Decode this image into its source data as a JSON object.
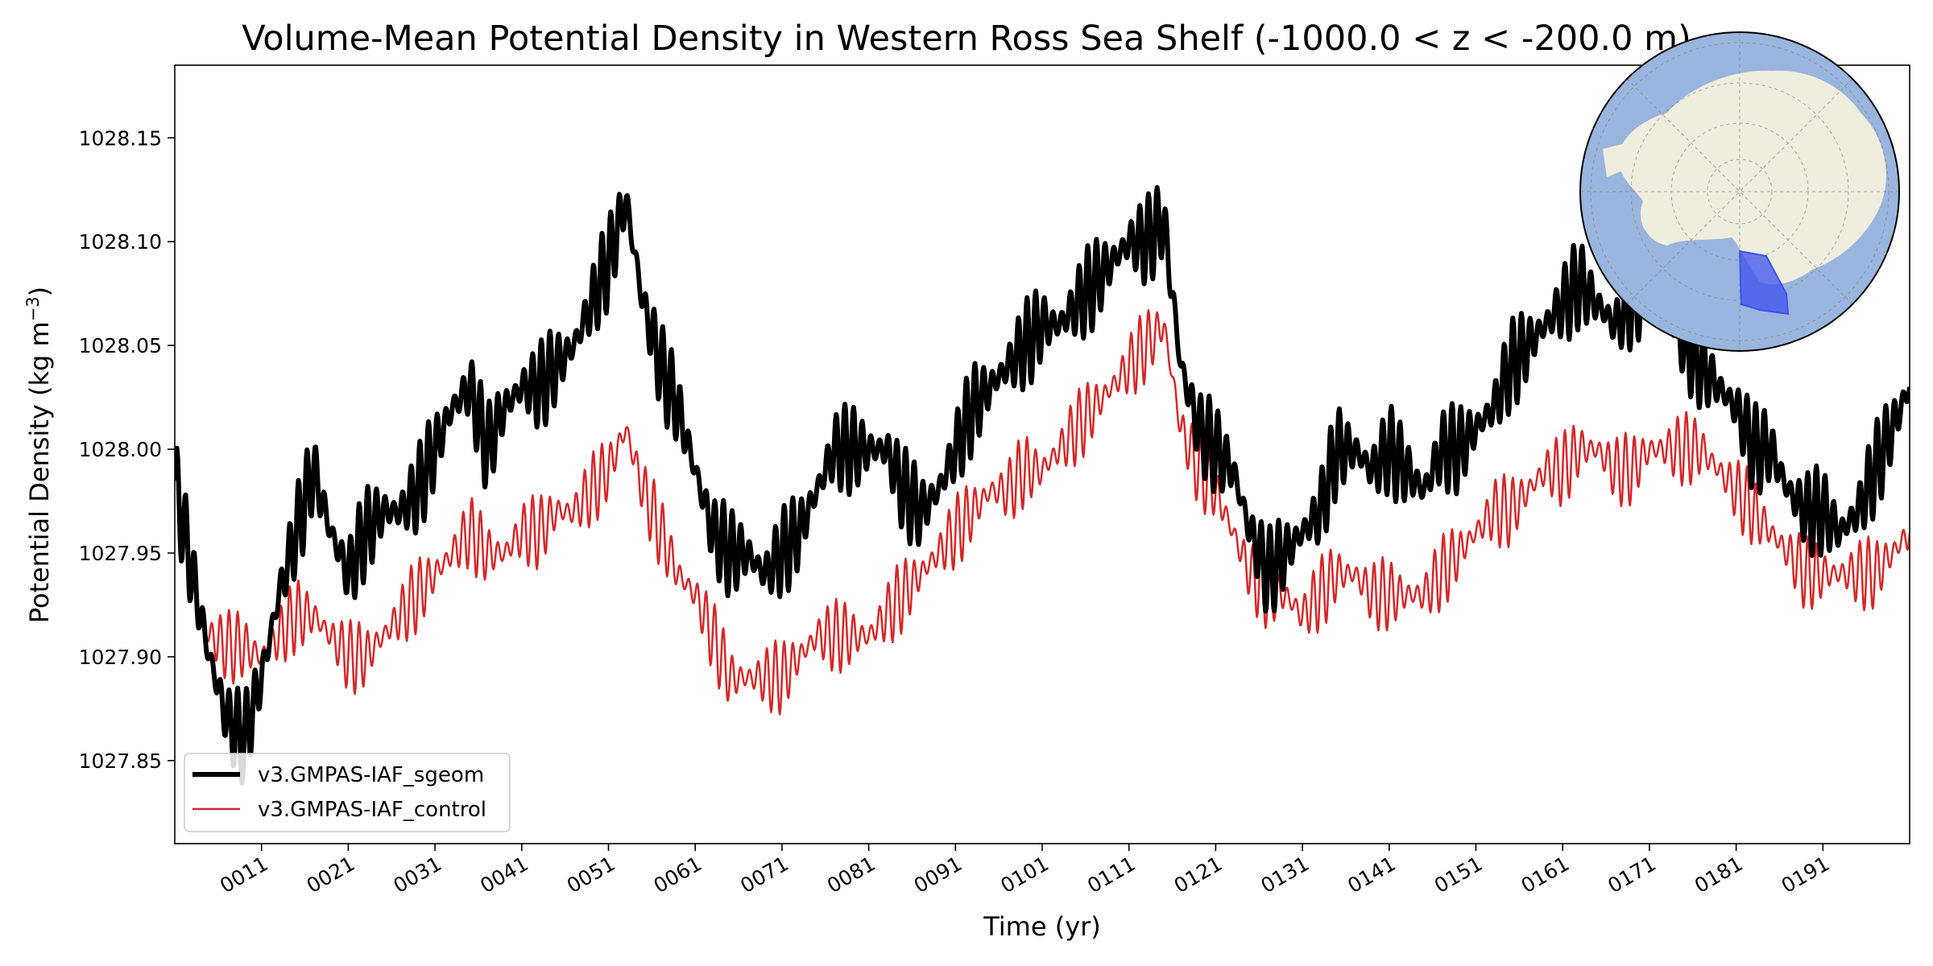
{
  "chart_data": {
    "type": "line",
    "title": "Volume-Mean Potential Density in Western Ross Sea Shelf (-1000.0 < z < -200.0 m)",
    "xlabel": "Time (yr)",
    "ylabel": "Potential Density (kg m",
    "ylabel_exponent": "−3",
    "ylabel_close": ")",
    "xlim": [
      1,
      201
    ],
    "ylim": [
      1027.81,
      1028.185
    ],
    "x_ticks": [
      11,
      21,
      31,
      41,
      51,
      61,
      71,
      81,
      91,
      101,
      111,
      121,
      131,
      141,
      151,
      161,
      171,
      181,
      191
    ],
    "x_tick_labels": [
      "0011",
      "0021",
      "0031",
      "0041",
      "0051",
      "0061",
      "0071",
      "0081",
      "0091",
      "0101",
      "0111",
      "0121",
      "0131",
      "0141",
      "0151",
      "0161",
      "0171",
      "0181",
      "0191"
    ],
    "y_ticks": [
      1027.85,
      1027.9,
      1027.95,
      1028.0,
      1028.05,
      1028.1,
      1028.15
    ],
    "y_tick_labels": [
      "1027.85",
      "1027.90",
      "1027.95",
      "1028.00",
      "1028.05",
      "1028.10",
      "1028.15"
    ],
    "legend_position": "lower-left",
    "grid": false,
    "series": [
      {
        "name": "v3.GMPAS-IAF_sgeom",
        "color": "#000000",
        "x": [
          1,
          3,
          5,
          7,
          9,
          11,
          13,
          15,
          17,
          19,
          21,
          23,
          25,
          27,
          29,
          31,
          33,
          35,
          37,
          39,
          41,
          43,
          45,
          47,
          49,
          51,
          53,
          55,
          57,
          59,
          61,
          63,
          65,
          67,
          69,
          71,
          73,
          75,
          77,
          79,
          81,
          83,
          85,
          87,
          89,
          91,
          93,
          95,
          97,
          99,
          101,
          103,
          105,
          107,
          109,
          111,
          113,
          115,
          117,
          119,
          121,
          123,
          125,
          127,
          129,
          131,
          133,
          135,
          137,
          139,
          141,
          143,
          145,
          147,
          149,
          151,
          153,
          155,
          157,
          159,
          161,
          163,
          165,
          167,
          169,
          171,
          173,
          175,
          177,
          179,
          181,
          183,
          185,
          187,
          189,
          191,
          193,
          195,
          197,
          199,
          201
        ],
        "y": [
          1027.985,
          1027.94,
          1027.9,
          1027.87,
          1027.86,
          1027.89,
          1027.93,
          1027.96,
          1027.99,
          1027.96,
          1027.94,
          1027.96,
          1027.97,
          1027.97,
          1027.98,
          1028.0,
          1028.02,
          1028.03,
          1028.0,
          1028.02,
          1028.03,
          1028.03,
          1028.04,
          1028.05,
          1028.07,
          1028.09,
          1028.12,
          1028.07,
          1028.04,
          1028.02,
          1027.99,
          1027.96,
          1027.95,
          1027.95,
          1027.94,
          1027.95,
          1027.96,
          1027.98,
          1028.0,
          1028.0,
          1028.0,
          1028.0,
          1027.98,
          1027.97,
          1027.98,
          1028.0,
          1028.02,
          1028.03,
          1028.04,
          1028.05,
          1028.06,
          1028.06,
          1028.07,
          1028.08,
          1028.09,
          1028.1,
          1028.1,
          1028.11,
          1028.04,
          1028.01,
          1028.0,
          1027.99,
          1027.96,
          1027.94,
          1027.95,
          1027.96,
          1027.97,
          1028.0,
          1028.0,
          1027.99,
          1028.0,
          1027.99,
          1027.98,
          1028.0,
          1028.0,
          1028.01,
          1028.02,
          1028.04,
          1028.05,
          1028.06,
          1028.07,
          1028.08,
          1028.07,
          1028.06,
          1028.07,
          1028.08,
          1028.07,
          1028.05,
          1028.04,
          1028.03,
          1028.02,
          1028.0,
          1028.0,
          1027.98,
          1027.97,
          1027.97,
          1027.96,
          1027.97,
          1027.99,
          1028.01,
          1028.03
        ]
      },
      {
        "name": "v3.GMPAS-IAF_control",
        "color": "#d62728",
        "x": [
          1,
          3,
          5,
          7,
          9,
          11,
          13,
          15,
          17,
          19,
          21,
          23,
          25,
          27,
          29,
          31,
          33,
          35,
          37,
          39,
          41,
          43,
          45,
          47,
          49,
          51,
          53,
          55,
          57,
          59,
          61,
          63,
          65,
          67,
          69,
          71,
          73,
          75,
          77,
          79,
          81,
          83,
          85,
          87,
          89,
          91,
          93,
          95,
          97,
          99,
          101,
          103,
          105,
          107,
          109,
          111,
          113,
          115,
          117,
          119,
          121,
          123,
          125,
          127,
          129,
          131,
          133,
          135,
          137,
          139,
          141,
          143,
          145,
          147,
          149,
          151,
          153,
          155,
          157,
          159,
          161,
          163,
          165,
          167,
          169,
          171,
          173,
          175,
          177,
          179,
          181,
          183,
          185,
          187,
          189,
          191,
          193,
          195,
          197,
          199,
          201
        ],
        "y": [
          1027.985,
          1027.93,
          1027.91,
          1027.905,
          1027.905,
          1027.9,
          1027.91,
          1027.92,
          1027.92,
          1027.91,
          1027.9,
          1027.9,
          1027.91,
          1027.92,
          1027.93,
          1027.94,
          1027.95,
          1027.96,
          1027.95,
          1027.95,
          1027.96,
          1027.96,
          1027.97,
          1027.97,
          1027.98,
          1027.99,
          1028.01,
          1027.98,
          1027.96,
          1027.94,
          1027.93,
          1027.91,
          1027.89,
          1027.89,
          1027.89,
          1027.89,
          1027.9,
          1027.91,
          1027.91,
          1027.91,
          1027.91,
          1027.92,
          1027.93,
          1027.94,
          1027.95,
          1027.96,
          1027.97,
          1027.98,
          1027.98,
          1027.99,
          1027.99,
          1028.0,
          1028.01,
          1028.02,
          1028.03,
          1028.04,
          1028.05,
          1028.06,
          1028.01,
          1027.99,
          1027.98,
          1027.96,
          1027.94,
          1027.93,
          1027.93,
          1027.92,
          1027.93,
          1027.94,
          1027.94,
          1027.93,
          1027.93,
          1027.93,
          1027.93,
          1027.94,
          1027.95,
          1027.96,
          1027.97,
          1027.97,
          1027.98,
          1027.99,
          1027.99,
          1028.0,
          1028.0,
          1027.99,
          1027.99,
          1028.0,
          1028.0,
          1028.0,
          1028.0,
          1027.99,
          1027.98,
          1027.97,
          1027.96,
          1027.95,
          1027.94,
          1027.94,
          1027.94,
          1027.94,
          1027.94,
          1027.95,
          1027.96
        ]
      }
    ],
    "inset_map": {
      "projection": "south-polar-stereographic",
      "ocean_color": "#9ab5dd",
      "land_color": "#efedde",
      "region_color": "#3b52f2",
      "region_label": ""
    }
  }
}
